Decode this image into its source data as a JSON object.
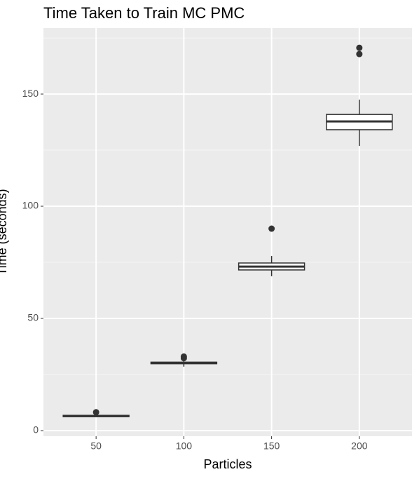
{
  "chart_data": {
    "type": "box",
    "title": "Time Taken to Train MC PMC",
    "x_label": "Particles",
    "y_label": "Time (seconds)",
    "categories": [
      "50",
      "100",
      "150",
      "200"
    ],
    "boxes": [
      {
        "whisker_low": 6.0,
        "q1": 6.2,
        "median": 6.5,
        "q3": 6.8,
        "whisker_high": 7.2,
        "outliers": [
          8.2
        ]
      },
      {
        "whisker_low": 28.5,
        "q1": 29.8,
        "median": 30.2,
        "q3": 30.5,
        "whisker_high": 31.5,
        "outliers": [
          33.0,
          32.3
        ]
      },
      {
        "whisker_low": 68.8,
        "q1": 71.6,
        "median": 73.1,
        "q3": 74.7,
        "whisker_high": 77.8,
        "outliers": [
          90.0
        ]
      },
      {
        "whisker_low": 126.9,
        "q1": 134.1,
        "median": 137.8,
        "q3": 140.9,
        "whisker_high": 147.5,
        "outliers": [
          170.6,
          167.8
        ]
      }
    ],
    "color": "#333333",
    "fill": "#ffffff",
    "ylim": [
      -2.5,
      179.4
    ],
    "yticks": [
      0,
      50,
      100,
      150
    ],
    "minor_yticks": [
      25,
      75,
      125,
      175
    ],
    "grid": true
  }
}
